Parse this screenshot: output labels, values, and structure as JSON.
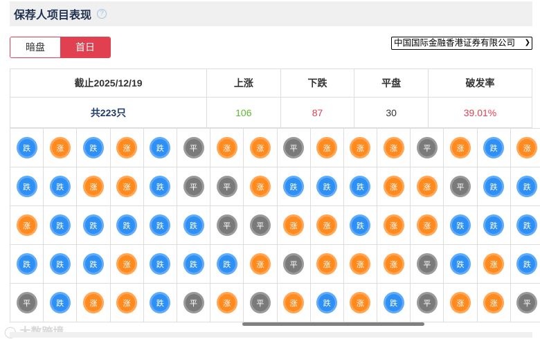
{
  "header": {
    "title": "保荐人项目表现",
    "help_icon": "question-circle-icon"
  },
  "toggle": {
    "options": [
      "暗盘",
      "首日"
    ],
    "selected": "首日"
  },
  "sponsor_select": {
    "value": "中国国际金融香港证券有限公司"
  },
  "summary": {
    "headers": [
      "截止2025/12/19",
      "上涨",
      "下跌",
      "平盘",
      "破发率"
    ],
    "values": [
      "共223只",
      "106",
      "87",
      "30",
      "39.01%"
    ]
  },
  "colors": {
    "up": "#ff8a1e",
    "down": "#2e90f5",
    "flat": "#7a7a7a",
    "accent": "#e0404f",
    "green": "#5cb82e",
    "red": "#e0404f",
    "navy": "#1e3a6e"
  },
  "labels": {
    "U": "涨",
    "D": "跌",
    "P": "平"
  },
  "grid": [
    "DUDUDPUUPUUUPUDU",
    "DDUUDPPUDDDUUPDD",
    "UDDDDDPPUUDUUDDD",
    "DDDUDDDUPUUUPDUD",
    "PDUUDPUPUDUDPUUP"
  ],
  "watermark": "大数跨境"
}
